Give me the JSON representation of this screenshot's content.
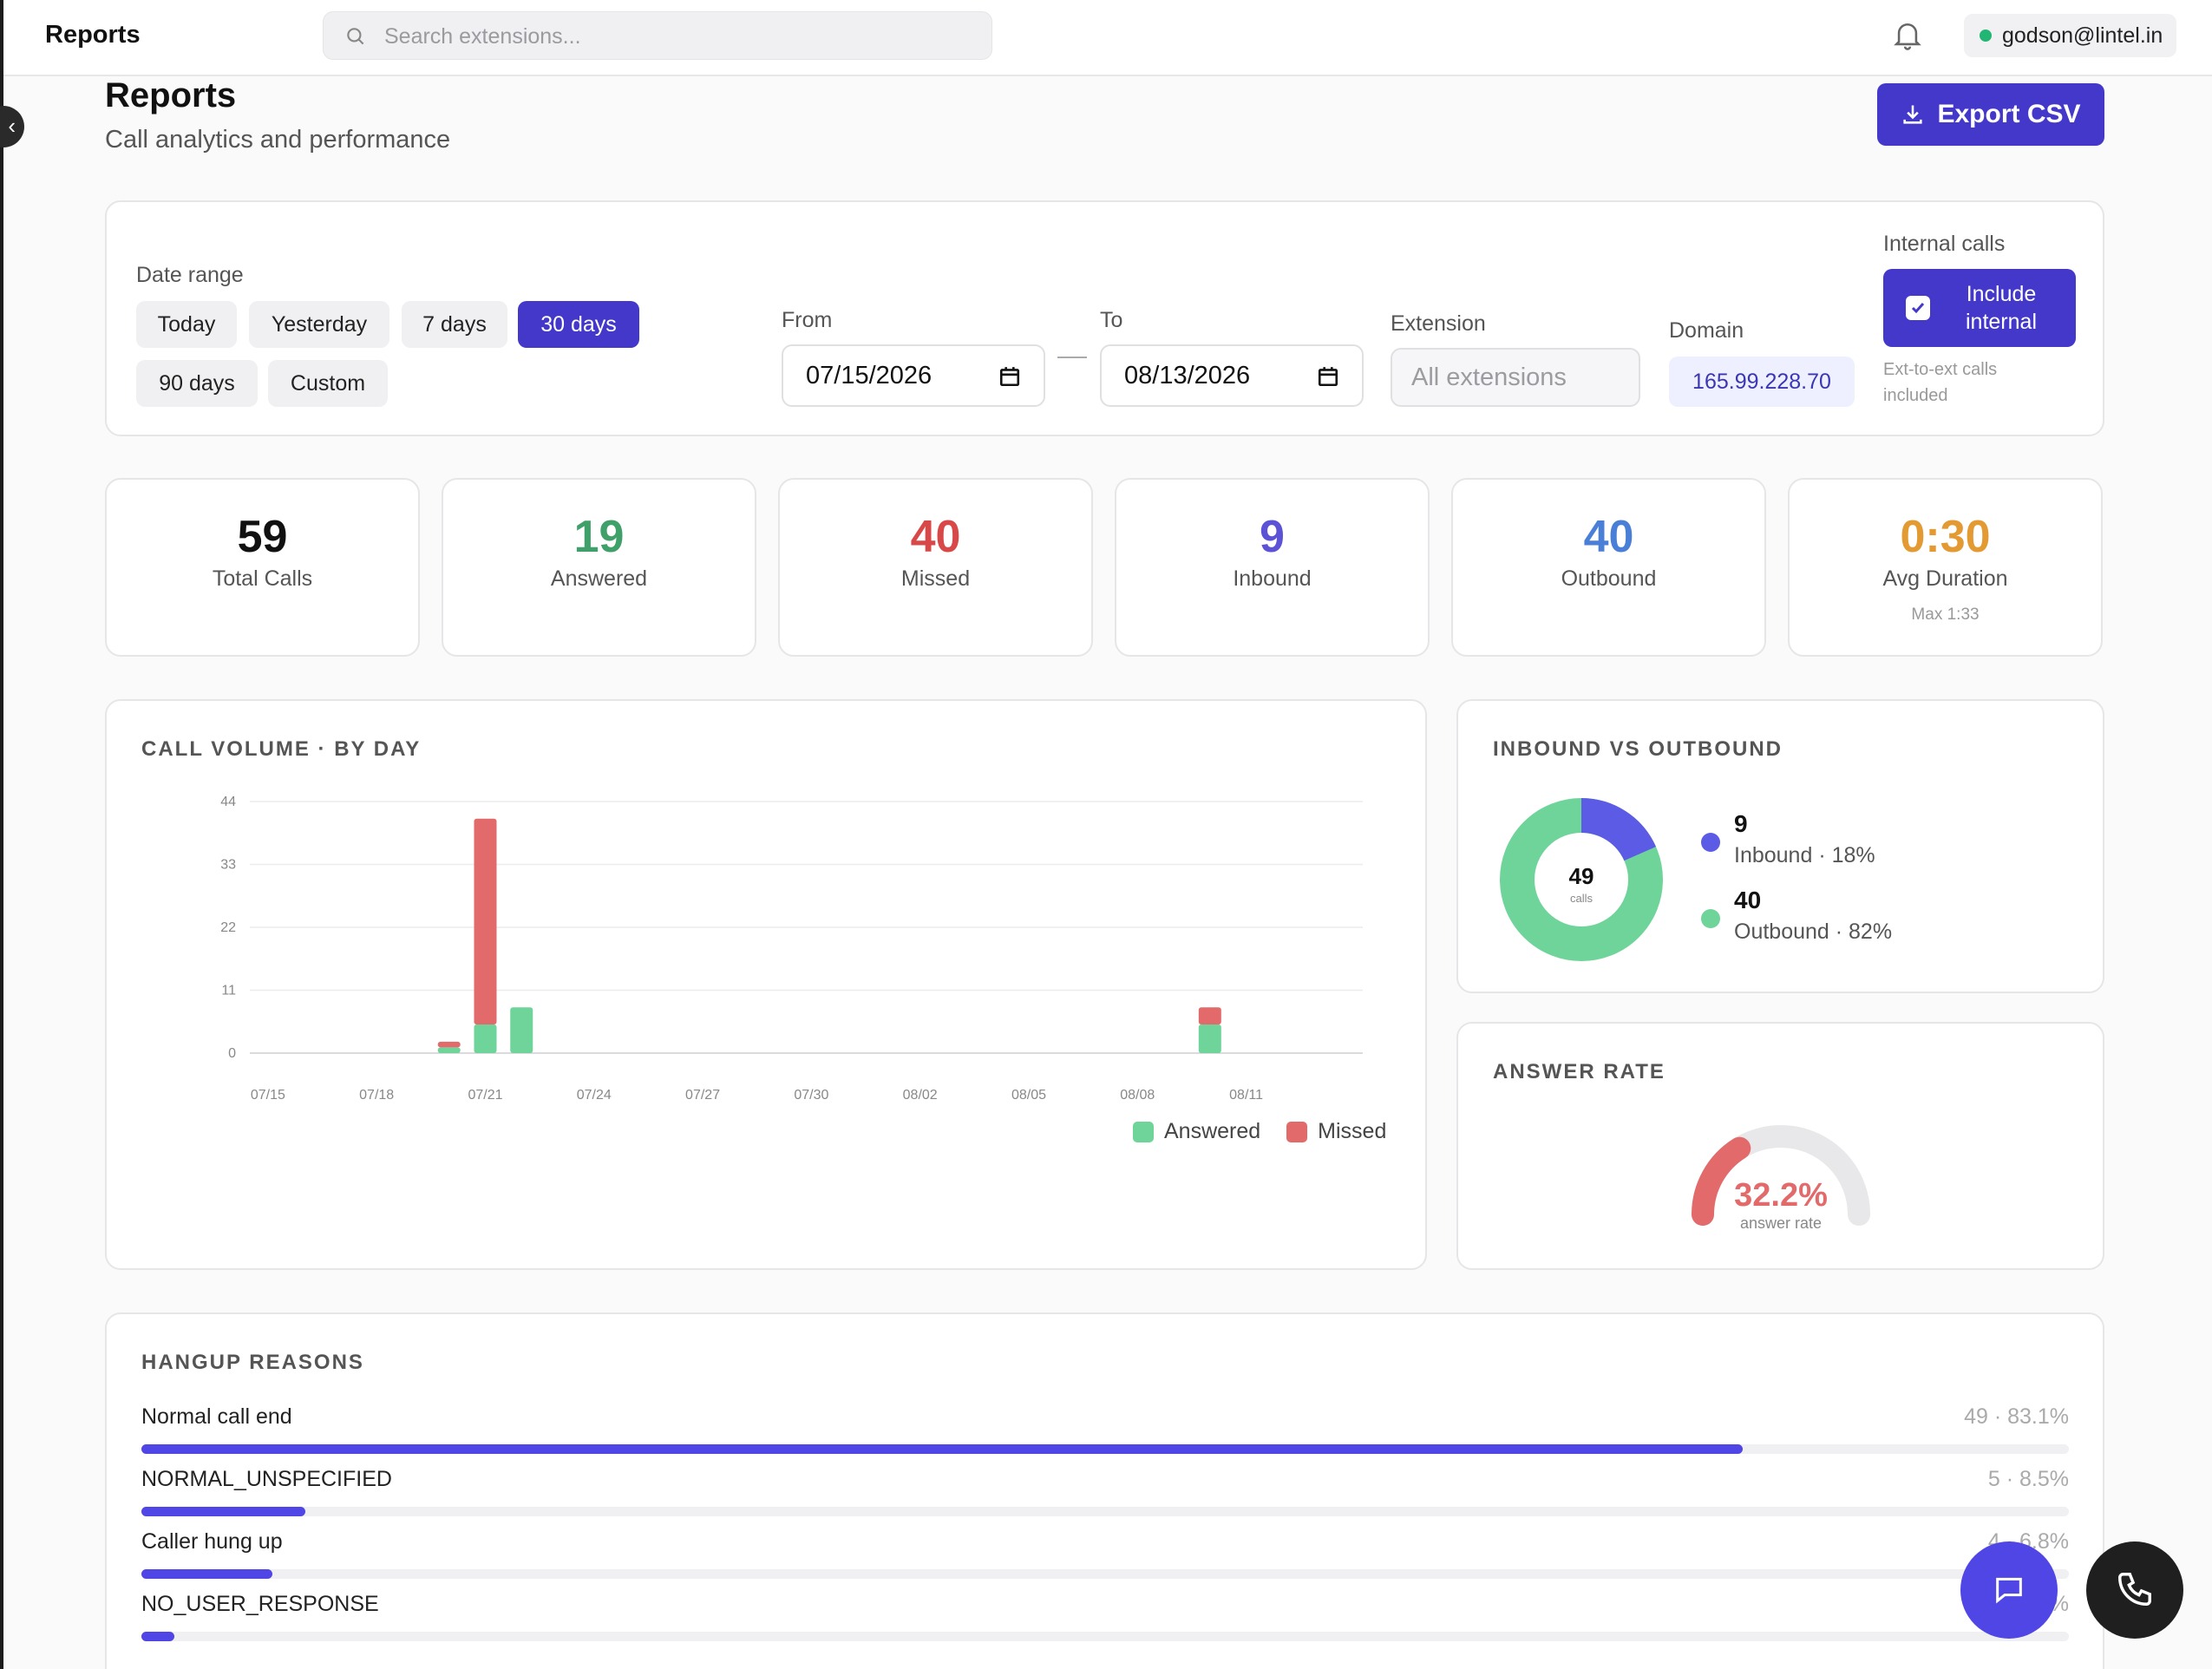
{
  "topbar": {
    "title": "Reports",
    "search_placeholder": "Search extensions...",
    "user_email": "godson@lintel.in"
  },
  "header": {
    "title": "Reports",
    "subtitle": "Call analytics and performance",
    "export_label": "Export CSV"
  },
  "filters": {
    "date_range_label": "Date range",
    "presets": [
      "Today",
      "Yesterday",
      "7 days",
      "30 days",
      "90 days",
      "Custom"
    ],
    "active_preset": "30 days",
    "from_label": "From",
    "from_value": "07/15/2026",
    "to_label": "To",
    "to_value": "08/13/2026",
    "extension_label": "Extension",
    "extension_placeholder": "All extensions",
    "domain_label": "Domain",
    "domain_value": "165.99.228.70",
    "internal_label": "Internal calls",
    "include_internal_label": "Include internal",
    "include_internal_checked": true,
    "internal_note": "Ext-to-ext calls included"
  },
  "stats": [
    {
      "value": "59",
      "label": "Total Calls",
      "color": "#111111"
    },
    {
      "value": "19",
      "label": "Answered",
      "color": "#3fa06a"
    },
    {
      "value": "40",
      "label": "Missed",
      "color": "#d94848"
    },
    {
      "value": "9",
      "label": "Inbound",
      "color": "#5b52d6"
    },
    {
      "value": "40",
      "label": "Outbound",
      "color": "#4a7fd8"
    },
    {
      "value": "0:30",
      "label": "Avg Duration",
      "sub": "Max 1:33",
      "color": "#e39a32"
    }
  ],
  "volume": {
    "title": "CALL VOLUME · BY DAY",
    "legend": [
      "Answered",
      "Missed"
    ]
  },
  "inout": {
    "title": "INBOUND VS OUTBOUND",
    "center_value": "49",
    "center_caption": "calls",
    "items": [
      {
        "value": "9",
        "label": "Inbound · 18%",
        "color": "#5b5be6"
      },
      {
        "value": "40",
        "label": "Outbound · 82%",
        "color": "#6fd49a"
      }
    ]
  },
  "answer": {
    "title": "ANSWER RATE",
    "value": "32.2%",
    "caption": "answer rate",
    "rate": 0.322,
    "color": "#e36a6a"
  },
  "hangup": {
    "title": "HANGUP REASONS",
    "rows": [
      {
        "name": "Normal call end",
        "value": "49 · 83.1%",
        "pct": 83.1
      },
      {
        "name": "NORMAL_UNSPECIFIED",
        "value": "5 · 8.5%",
        "pct": 8.5
      },
      {
        "name": "Caller hung up",
        "value": "4 · 6.8%",
        "pct": 6.8
      },
      {
        "name": "NO_USER_RESPONSE",
        "value": "1 · 1.7%",
        "pct": 1.7
      }
    ]
  },
  "chart_data": {
    "type": "bar",
    "stacked": true,
    "title": "CALL VOLUME · BY DAY",
    "x": [
      "07/15",
      "07/16",
      "07/17",
      "07/18",
      "07/19",
      "07/20",
      "07/21",
      "07/22",
      "07/23",
      "07/24",
      "07/25",
      "07/26",
      "07/27",
      "07/28",
      "07/29",
      "07/30",
      "07/31",
      "08/01",
      "08/02",
      "08/03",
      "08/04",
      "08/05",
      "08/06",
      "08/07",
      "08/08",
      "08/09",
      "08/10",
      "08/11",
      "08/12",
      "08/13"
    ],
    "x_tick_labels": [
      "07/15",
      "07/18",
      "07/21",
      "07/24",
      "07/27",
      "07/30",
      "08/02",
      "08/05",
      "08/08",
      "08/11"
    ],
    "y_ticks": [
      0,
      11,
      22,
      33,
      44
    ],
    "ylim": [
      0,
      44
    ],
    "series": [
      {
        "name": "Answered",
        "color": "#6fd49a",
        "values": [
          0,
          0,
          0,
          0,
          0,
          1,
          5,
          8,
          0,
          0,
          0,
          0,
          0,
          0,
          0,
          0,
          0,
          0,
          0,
          0,
          0,
          0,
          0,
          0,
          0,
          0,
          5,
          0,
          0,
          0
        ]
      },
      {
        "name": "Missed",
        "color": "#e36a6a",
        "values": [
          0,
          0,
          0,
          0,
          0,
          1,
          36,
          0,
          0,
          0,
          0,
          0,
          0,
          0,
          0,
          0,
          0,
          0,
          0,
          0,
          0,
          0,
          0,
          0,
          0,
          0,
          3,
          0,
          0,
          0
        ]
      }
    ],
    "legend_position": "bottom-right",
    "grid": true
  }
}
